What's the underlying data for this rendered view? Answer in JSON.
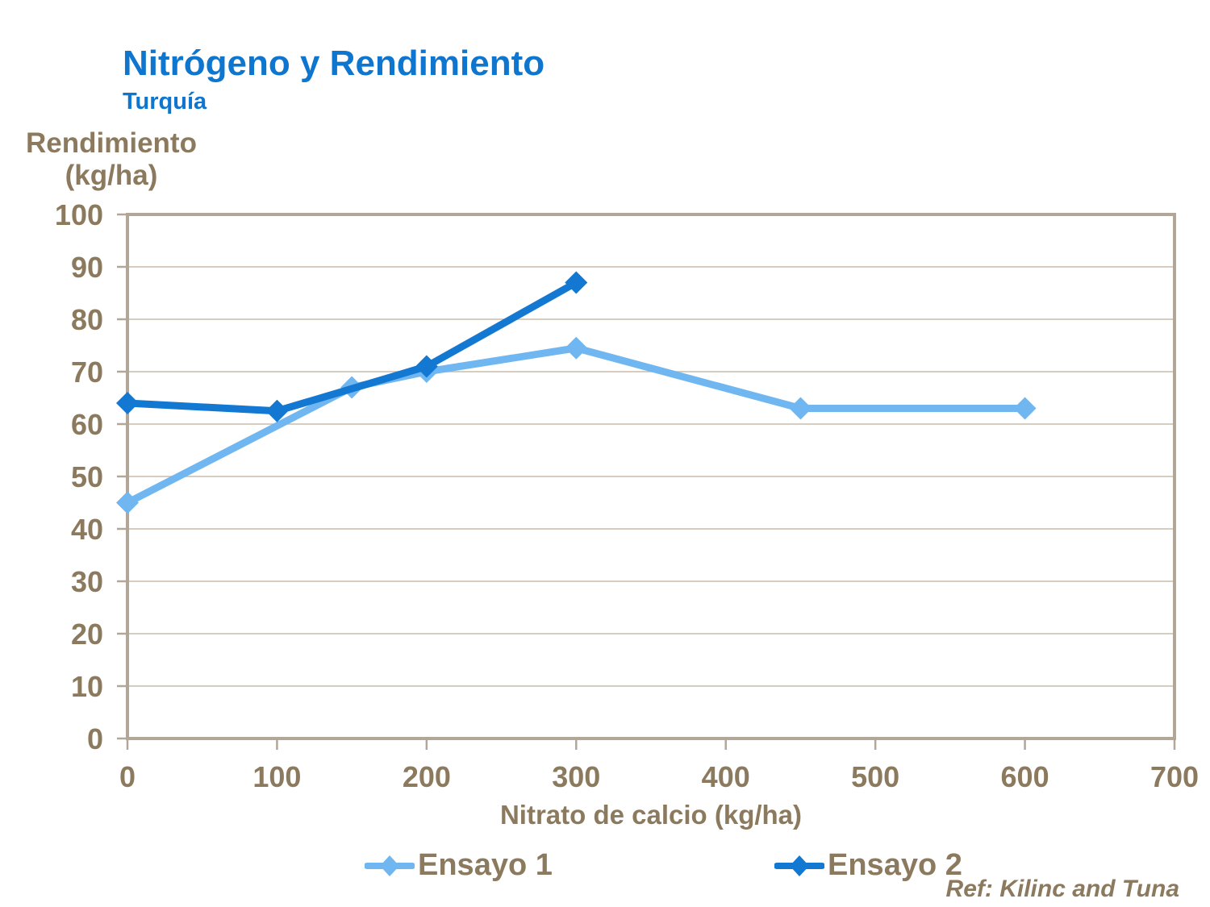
{
  "colors": {
    "title_blue": "#0E76CE",
    "text_brown": "#8C7A5E",
    "gridline": "#C8BCAC",
    "border": "#B2A698",
    "background": "#FFFFFF",
    "series1": "#70B7F1",
    "series2": "#1278D2"
  },
  "chart_data": {
    "type": "line",
    "title": "Nitrógeno y Rendimiento",
    "subtitle": "Turquía",
    "xlabel": "Nitrato de calcio (kg/ha)",
    "ylabel": "Rendimiento (kg/ha)",
    "ylabel_lines": [
      "Rendimiento",
      "(kg/ha)"
    ],
    "xlim": [
      0,
      700
    ],
    "ylim": [
      0,
      100
    ],
    "xticks": [
      0,
      100,
      200,
      300,
      400,
      500,
      600,
      700
    ],
    "yticks": [
      0,
      10,
      20,
      30,
      40,
      50,
      60,
      70,
      80,
      90,
      100
    ],
    "grid": "horizontal",
    "legend_position": "bottom",
    "marker": "diamond",
    "series": [
      {
        "name": "Ensayo 1",
        "color": "#70B7F1",
        "x": [
          0,
          150,
          200,
          300,
          450,
          600
        ],
        "y": [
          45,
          67,
          70,
          74.5,
          63,
          63
        ]
      },
      {
        "name": "Ensayo 2",
        "color": "#1278D2",
        "x": [
          0,
          100,
          200,
          300
        ],
        "y": [
          64,
          62.5,
          71,
          87
        ]
      }
    ],
    "annotation": "Ref: Kilinc and Tuna"
  }
}
